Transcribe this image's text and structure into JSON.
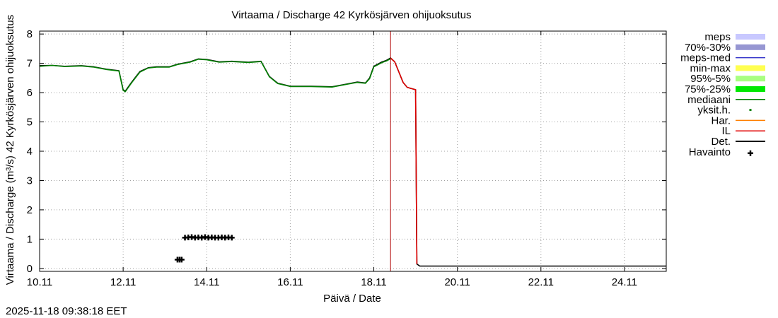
{
  "chart_data": {
    "type": "line",
    "title": "Virtaama / Discharge  42 Kyrkösjärven ohijuoksutus",
    "xlabel": "Päivä / Date",
    "ylabel": "Virtaama / Discharge (m³/s)  42 Kyrkösjärven ohijuoksutus",
    "timestamp": "2025-11-18 09:38:18 EET",
    "xlim": [
      0,
      15
    ],
    "ylim": [
      -0.1,
      8.1
    ],
    "grid": true,
    "xticks": [
      {
        "x": 0,
        "label": "10.11"
      },
      {
        "x": 2,
        "label": "12.11"
      },
      {
        "x": 4,
        "label": "14.11"
      },
      {
        "x": 6,
        "label": "16.11"
      },
      {
        "x": 8,
        "label": "18.11"
      },
      {
        "x": 10,
        "label": "20.11"
      },
      {
        "x": 12,
        "label": "22.11"
      },
      {
        "x": 14,
        "label": "24.11"
      }
    ],
    "yticks": [
      0,
      1,
      2,
      3,
      4,
      5,
      6,
      7,
      8
    ],
    "forecast_start_x": 8.4,
    "legend": [
      {
        "name": "meps",
        "color": "#c8c8ff",
        "kind": "band"
      },
      {
        "name": "70%-30%",
        "color": "#9696d2",
        "kind": "band"
      },
      {
        "name": "meps-med",
        "color": "#3232c8",
        "kind": "line"
      },
      {
        "name": "min-max",
        "color": "#ffff50",
        "kind": "band"
      },
      {
        "name": "95%-5%",
        "color": "#a8ff80",
        "kind": "band"
      },
      {
        "name": "75%-25%",
        "color": "#00e800",
        "kind": "band"
      },
      {
        "name": "mediaani",
        "color": "#008000",
        "kind": "line"
      },
      {
        "name": "yksit.h.",
        "color": "#008000",
        "kind": "dot"
      },
      {
        "name": "Har.",
        "color": "#ff8000",
        "kind": "line"
      },
      {
        "name": "IL",
        "color": "#e00000",
        "kind": "line"
      },
      {
        "name": "Det.",
        "color": "#000000",
        "kind": "line"
      },
      {
        "name": "Havainto",
        "color": "#000000",
        "kind": "cross"
      }
    ],
    "series": [
      {
        "name": "Det.",
        "color": "#000000",
        "x": [
          0.0,
          0.3,
          0.6,
          1.0,
          1.3,
          1.6,
          1.9,
          2.0,
          2.05,
          2.2,
          2.4,
          2.6,
          2.8,
          3.1,
          3.3,
          3.6,
          3.8,
          4.0,
          4.3,
          4.6,
          5.0,
          5.3,
          5.5,
          5.7,
          6.0,
          6.5,
          7.0,
          7.3,
          7.6,
          7.8,
          7.9,
          8.0,
          8.2,
          8.3,
          8.4,
          8.5,
          8.6,
          8.7,
          8.8,
          8.95,
          9.0,
          9.03,
          9.1,
          10.0,
          15.0
        ],
        "y": [
          6.92,
          6.93,
          6.9,
          6.92,
          6.88,
          6.8,
          6.75,
          6.1,
          6.05,
          6.35,
          6.72,
          6.85,
          6.88,
          6.88,
          6.97,
          7.05,
          7.15,
          7.13,
          7.05,
          7.07,
          7.04,
          7.07,
          6.55,
          6.32,
          6.22,
          6.22,
          6.2,
          6.28,
          6.36,
          6.33,
          6.5,
          6.9,
          7.05,
          7.1,
          7.18,
          7.05,
          6.7,
          6.35,
          6.18,
          6.12,
          6.1,
          0.15,
          0.08,
          0.08,
          0.08
        ]
      },
      {
        "name": "mediaani",
        "color": "#008000",
        "x": [
          0.0,
          0.3,
          0.6,
          1.0,
          1.3,
          1.6,
          1.9,
          2.0,
          2.05,
          2.2,
          2.4,
          2.6,
          2.8,
          3.1,
          3.3,
          3.6,
          3.8,
          4.0,
          4.3,
          4.6,
          5.0,
          5.3,
          5.5,
          5.7,
          6.0,
          6.5,
          7.0,
          7.3,
          7.6,
          7.8,
          7.9,
          8.0,
          8.2,
          8.3,
          8.4
        ],
        "y": [
          6.9,
          6.93,
          6.89,
          6.91,
          6.87,
          6.79,
          6.74,
          6.08,
          6.03,
          6.33,
          6.7,
          6.84,
          6.87,
          6.87,
          6.96,
          7.04,
          7.14,
          7.12,
          7.04,
          7.06,
          7.03,
          7.06,
          6.54,
          6.31,
          6.21,
          6.21,
          6.19,
          6.27,
          6.35,
          6.32,
          6.48,
          6.88,
          7.03,
          7.08,
          7.16
        ]
      },
      {
        "name": "IL",
        "color": "#e00000",
        "x": [
          8.4,
          8.5,
          8.6,
          8.7,
          8.8,
          8.95,
          9.0,
          9.03
        ],
        "y": [
          7.18,
          7.05,
          6.7,
          6.35,
          6.18,
          6.12,
          6.1,
          0.15
        ]
      }
    ],
    "observations": {
      "name": "Havainto",
      "x": [
        3.3,
        3.35,
        3.4,
        3.48,
        3.56,
        3.64,
        3.72,
        3.8,
        3.88,
        3.96,
        4.04,
        4.12,
        4.2,
        4.28,
        4.36,
        4.44,
        4.52,
        4.6
      ],
      "y": [
        0.3,
        0.3,
        0.3,
        1.05,
        1.06,
        1.07,
        1.05,
        1.06,
        1.05,
        1.07,
        1.05,
        1.06,
        1.05,
        1.05,
        1.06,
        1.05,
        1.06,
        1.05
      ]
    }
  }
}
